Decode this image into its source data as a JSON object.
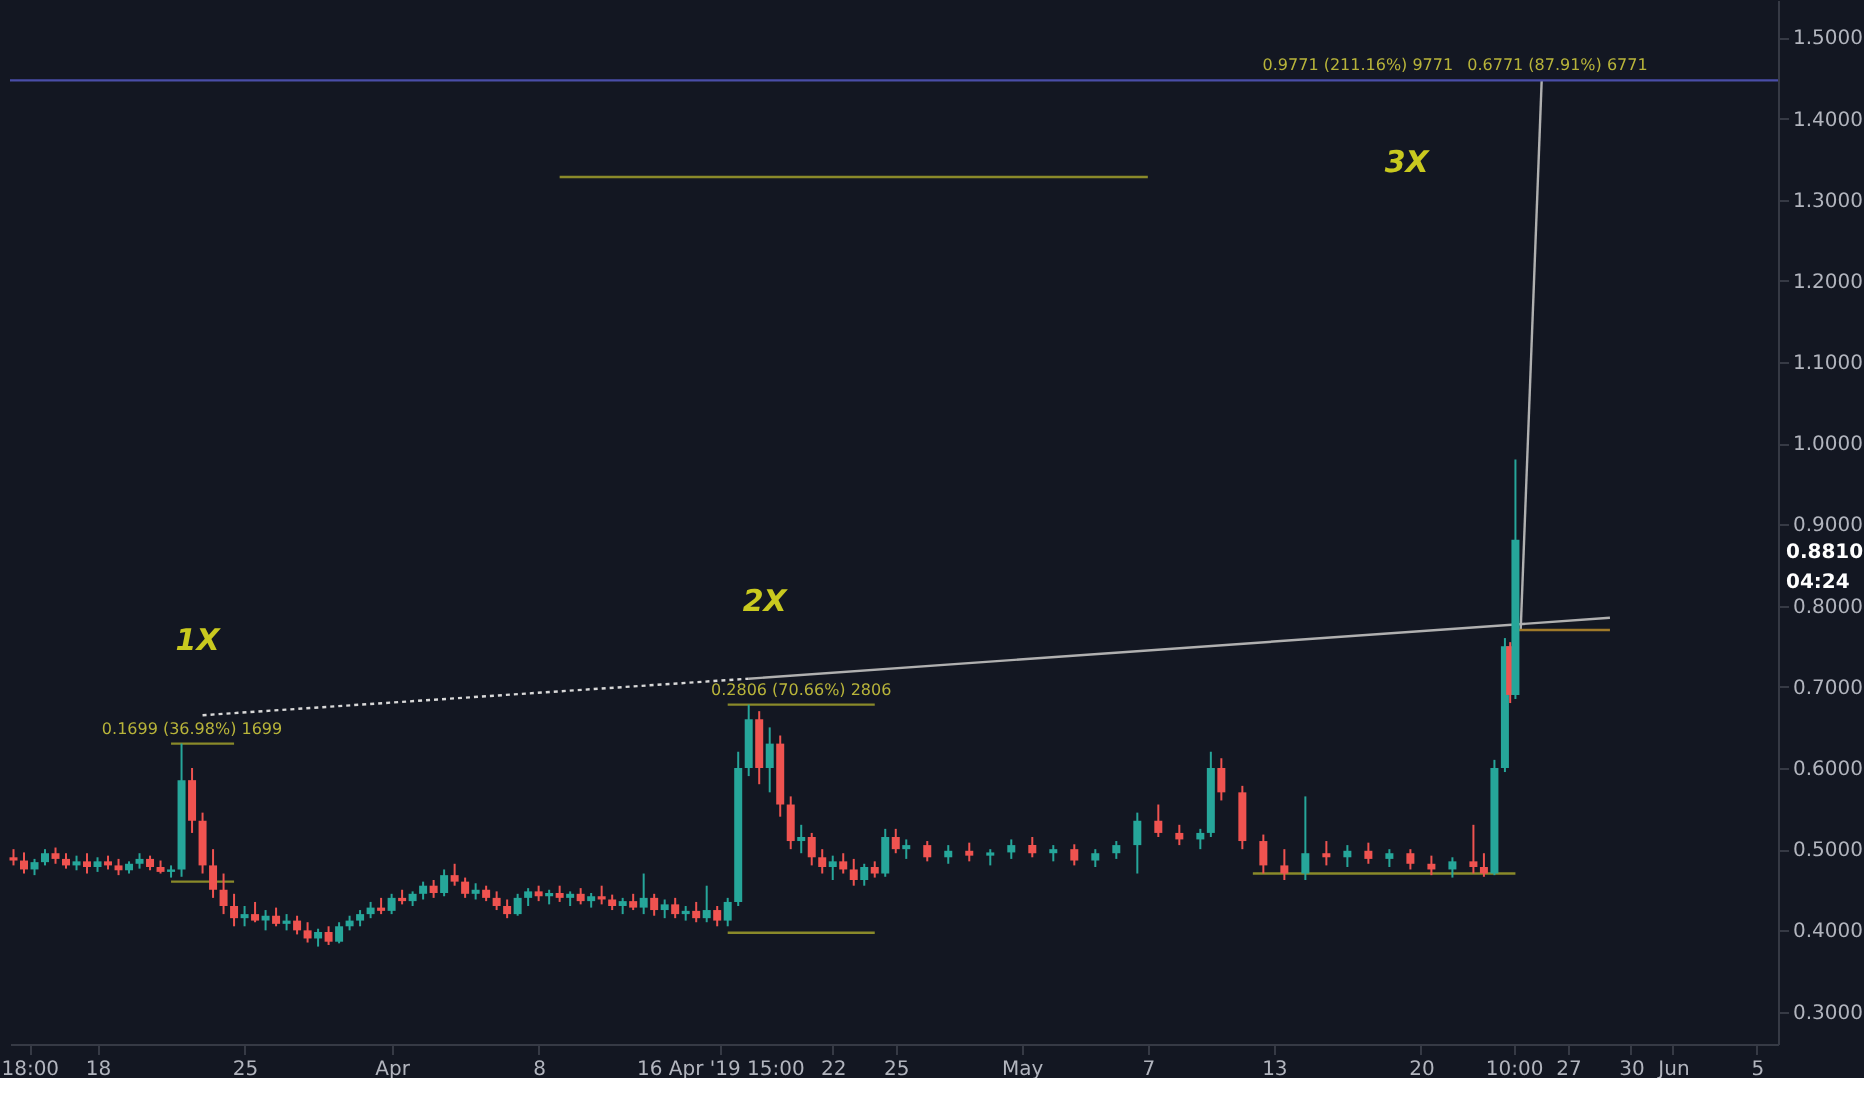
{
  "chart_data": {
    "type": "candlestick",
    "series": [
      {
        "type": "candlestick",
        "x": [
          "2019-03-14T00:00",
          "2019-03-14T12:00",
          "2019-03-15T00:00",
          "2019-03-15T12:00",
          "2019-03-16T00:00",
          "2019-03-16T12:00",
          "2019-03-17T00:00",
          "2019-03-17T12:00",
          "2019-03-18T00:00",
          "2019-03-18T12:00",
          "2019-03-19T00:00",
          "2019-03-19T12:00",
          "2019-03-20T00:00",
          "2019-03-20T12:00",
          "2019-03-21T00:00",
          "2019-03-21T12:00",
          "2019-03-22T00:00",
          "2019-03-22T12:00",
          "2019-03-23T00:00",
          "2019-03-23T12:00",
          "2019-03-24T00:00",
          "2019-03-24T12:00",
          "2019-03-25T00:00",
          "2019-03-25T12:00",
          "2019-03-26T00:00",
          "2019-03-26T12:00",
          "2019-03-27T00:00",
          "2019-03-27T12:00",
          "2019-03-28T00:00",
          "2019-03-28T12:00",
          "2019-03-29T00:00",
          "2019-03-29T12:00",
          "2019-03-30T00:00",
          "2019-03-30T12:00",
          "2019-03-31T00:00",
          "2019-03-31T12:00",
          "2019-04-01T00:00",
          "2019-04-01T12:00",
          "2019-04-02T00:00",
          "2019-04-02T12:00",
          "2019-04-03T00:00",
          "2019-04-03T12:00",
          "2019-04-04T00:00",
          "2019-04-04T12:00",
          "2019-04-05T00:00",
          "2019-04-05T12:00",
          "2019-04-06T00:00",
          "2019-04-06T12:00",
          "2019-04-07T00:00",
          "2019-04-07T12:00",
          "2019-04-08T00:00",
          "2019-04-08T12:00",
          "2019-04-09T00:00",
          "2019-04-09T12:00",
          "2019-04-10T00:00",
          "2019-04-10T12:00",
          "2019-04-11T00:00",
          "2019-04-11T12:00",
          "2019-04-12T00:00",
          "2019-04-12T12:00",
          "2019-04-13T00:00",
          "2019-04-13T12:00",
          "2019-04-14T00:00",
          "2019-04-14T12:00",
          "2019-04-15T00:00",
          "2019-04-15T12:00",
          "2019-04-16T00:00",
          "2019-04-16T12:00",
          "2019-04-17T00:00",
          "2019-04-17T12:00",
          "2019-04-18T00:00",
          "2019-04-18T12:00",
          "2019-04-19T00:00",
          "2019-04-19T12:00",
          "2019-04-20T00:00",
          "2019-04-20T12:00",
          "2019-04-21T00:00",
          "2019-04-21T12:00",
          "2019-04-22T00:00",
          "2019-04-22T12:00",
          "2019-04-23T00:00",
          "2019-04-23T12:00",
          "2019-04-24T00:00",
          "2019-04-24T12:00",
          "2019-04-25T00:00",
          "2019-04-25T12:00",
          "2019-04-26T12:00",
          "2019-04-27T12:00",
          "2019-04-28T12:00",
          "2019-04-29T12:00",
          "2019-04-30T12:00",
          "2019-05-01T12:00",
          "2019-05-02T12:00",
          "2019-05-03T12:00",
          "2019-05-04T12:00",
          "2019-05-05T12:00",
          "2019-05-06T12:00",
          "2019-05-07T12:00",
          "2019-05-08T12:00",
          "2019-05-09T12:00",
          "2019-05-10T00:00",
          "2019-05-10T12:00",
          "2019-05-11T12:00",
          "2019-05-12T12:00",
          "2019-05-13T12:00",
          "2019-05-14T12:00",
          "2019-05-15T12:00",
          "2019-05-16T12:00",
          "2019-05-17T12:00",
          "2019-05-18T12:00",
          "2019-05-19T12:00",
          "2019-05-20T12:00",
          "2019-05-21T12:00",
          "2019-05-22T12:00",
          "2019-05-23T00:00",
          "2019-05-23T12:00",
          "2019-05-24T00:00",
          "2019-05-24T06:00",
          "2019-05-24T12:00"
        ],
        "ohlc": [
          [
            0.49,
            0.5,
            0.48,
            0.486
          ],
          [
            0.486,
            0.496,
            0.47,
            0.475
          ],
          [
            0.475,
            0.488,
            0.468,
            0.484
          ],
          [
            0.484,
            0.5,
            0.48,
            0.495
          ],
          [
            0.495,
            0.502,
            0.482,
            0.488
          ],
          [
            0.488,
            0.495,
            0.476,
            0.48
          ],
          [
            0.48,
            0.492,
            0.474,
            0.485
          ],
          [
            0.485,
            0.495,
            0.47,
            0.478
          ],
          [
            0.478,
            0.49,
            0.472,
            0.485
          ],
          [
            0.485,
            0.492,
            0.475,
            0.48
          ],
          [
            0.48,
            0.488,
            0.468,
            0.474
          ],
          [
            0.474,
            0.485,
            0.47,
            0.482
          ],
          [
            0.482,
            0.495,
            0.476,
            0.488
          ],
          [
            0.488,
            0.492,
            0.474,
            0.478
          ],
          [
            0.478,
            0.486,
            0.47,
            0.472
          ],
          [
            0.472,
            0.48,
            0.465,
            0.475
          ],
          [
            0.475,
            0.63,
            0.466,
            0.585
          ],
          [
            0.585,
            0.6,
            0.52,
            0.535
          ],
          [
            0.535,
            0.545,
            0.47,
            0.48
          ],
          [
            0.48,
            0.5,
            0.44,
            0.45
          ],
          [
            0.45,
            0.47,
            0.42,
            0.43
          ],
          [
            0.43,
            0.445,
            0.405,
            0.415
          ],
          [
            0.415,
            0.43,
            0.405,
            0.42
          ],
          [
            0.42,
            0.435,
            0.41,
            0.412
          ],
          [
            0.412,
            0.425,
            0.4,
            0.418
          ],
          [
            0.418,
            0.428,
            0.405,
            0.408
          ],
          [
            0.408,
            0.42,
            0.4,
            0.412
          ],
          [
            0.412,
            0.418,
            0.395,
            0.4
          ],
          [
            0.4,
            0.41,
            0.385,
            0.39
          ],
          [
            0.39,
            0.402,
            0.38,
            0.398
          ],
          [
            0.398,
            0.405,
            0.382,
            0.386
          ],
          [
            0.386,
            0.41,
            0.384,
            0.405
          ],
          [
            0.405,
            0.418,
            0.4,
            0.412
          ],
          [
            0.412,
            0.425,
            0.405,
            0.42
          ],
          [
            0.42,
            0.435,
            0.415,
            0.428
          ],
          [
            0.428,
            0.44,
            0.42,
            0.424
          ],
          [
            0.424,
            0.445,
            0.42,
            0.44
          ],
          [
            0.44,
            0.45,
            0.432,
            0.436
          ],
          [
            0.436,
            0.448,
            0.43,
            0.445
          ],
          [
            0.445,
            0.46,
            0.438,
            0.455
          ],
          [
            0.455,
            0.462,
            0.44,
            0.446
          ],
          [
            0.446,
            0.475,
            0.442,
            0.468
          ],
          [
            0.468,
            0.482,
            0.455,
            0.46
          ],
          [
            0.46,
            0.465,
            0.44,
            0.445
          ],
          [
            0.445,
            0.458,
            0.438,
            0.45
          ],
          [
            0.45,
            0.455,
            0.436,
            0.44
          ],
          [
            0.44,
            0.448,
            0.425,
            0.43
          ],
          [
            0.43,
            0.438,
            0.415,
            0.42
          ],
          [
            0.42,
            0.445,
            0.418,
            0.44
          ],
          [
            0.44,
            0.452,
            0.43,
            0.448
          ],
          [
            0.448,
            0.455,
            0.436,
            0.442
          ],
          [
            0.442,
            0.45,
            0.432,
            0.446
          ],
          [
            0.446,
            0.455,
            0.435,
            0.44
          ],
          [
            0.44,
            0.448,
            0.43,
            0.445
          ],
          [
            0.445,
            0.452,
            0.432,
            0.436
          ],
          [
            0.436,
            0.446,
            0.428,
            0.442
          ],
          [
            0.442,
            0.455,
            0.432,
            0.438
          ],
          [
            0.438,
            0.444,
            0.425,
            0.43
          ],
          [
            0.43,
            0.44,
            0.42,
            0.436
          ],
          [
            0.436,
            0.445,
            0.425,
            0.428
          ],
          [
            0.428,
            0.47,
            0.42,
            0.44
          ],
          [
            0.44,
            0.445,
            0.418,
            0.425
          ],
          [
            0.425,
            0.438,
            0.415,
            0.432
          ],
          [
            0.432,
            0.44,
            0.415,
            0.42
          ],
          [
            0.42,
            0.43,
            0.412,
            0.424
          ],
          [
            0.424,
            0.435,
            0.41,
            0.415
          ],
          [
            0.415,
            0.455,
            0.41,
            0.425
          ],
          [
            0.425,
            0.43,
            0.405,
            0.412
          ],
          [
            0.412,
            0.44,
            0.405,
            0.435
          ],
          [
            0.435,
            0.62,
            0.43,
            0.6
          ],
          [
            0.6,
            0.678,
            0.59,
            0.66
          ],
          [
            0.66,
            0.67,
            0.58,
            0.6
          ],
          [
            0.6,
            0.65,
            0.57,
            0.63
          ],
          [
            0.63,
            0.64,
            0.54,
            0.555
          ],
          [
            0.555,
            0.565,
            0.5,
            0.51
          ],
          [
            0.51,
            0.53,
            0.495,
            0.515
          ],
          [
            0.515,
            0.52,
            0.48,
            0.49
          ],
          [
            0.49,
            0.5,
            0.47,
            0.478
          ],
          [
            0.478,
            0.492,
            0.462,
            0.485
          ],
          [
            0.485,
            0.495,
            0.47,
            0.475
          ],
          [
            0.475,
            0.488,
            0.455,
            0.462
          ],
          [
            0.462,
            0.482,
            0.455,
            0.478
          ],
          [
            0.478,
            0.485,
            0.465,
            0.47
          ],
          [
            0.47,
            0.525,
            0.466,
            0.515
          ],
          [
            0.515,
            0.525,
            0.495,
            0.5
          ],
          [
            0.5,
            0.512,
            0.488,
            0.505
          ],
          [
            0.505,
            0.51,
            0.485,
            0.49
          ],
          [
            0.49,
            0.505,
            0.482,
            0.498
          ],
          [
            0.498,
            0.508,
            0.485,
            0.492
          ],
          [
            0.492,
            0.5,
            0.48,
            0.496
          ],
          [
            0.496,
            0.512,
            0.488,
            0.505
          ],
          [
            0.505,
            0.515,
            0.49,
            0.495
          ],
          [
            0.495,
            0.505,
            0.485,
            0.5
          ],
          [
            0.5,
            0.506,
            0.48,
            0.486
          ],
          [
            0.486,
            0.5,
            0.478,
            0.495
          ],
          [
            0.495,
            0.51,
            0.488,
            0.505
          ],
          [
            0.505,
            0.545,
            0.47,
            0.535
          ],
          [
            0.535,
            0.555,
            0.515,
            0.52
          ],
          [
            0.52,
            0.53,
            0.505,
            0.512
          ],
          [
            0.512,
            0.525,
            0.5,
            0.52
          ],
          [
            0.52,
            0.62,
            0.515,
            0.6
          ],
          [
            0.6,
            0.612,
            0.56,
            0.57
          ],
          [
            0.57,
            0.578,
            0.5,
            0.51
          ],
          [
            0.51,
            0.518,
            0.47,
            0.48
          ],
          [
            0.48,
            0.5,
            0.462,
            0.47
          ],
          [
            0.47,
            0.565,
            0.462,
            0.495
          ],
          [
            0.495,
            0.51,
            0.48,
            0.49
          ],
          [
            0.49,
            0.505,
            0.478,
            0.498
          ],
          [
            0.498,
            0.508,
            0.482,
            0.488
          ],
          [
            0.488,
            0.5,
            0.478,
            0.495
          ],
          [
            0.495,
            0.5,
            0.475,
            0.482
          ],
          [
            0.482,
            0.492,
            0.468,
            0.475
          ],
          [
            0.475,
            0.49,
            0.465,
            0.485
          ],
          [
            0.485,
            0.53,
            0.47,
            0.478
          ],
          [
            0.478,
            0.495,
            0.466,
            0.47
          ],
          [
            0.47,
            0.61,
            0.468,
            0.6
          ],
          [
            0.6,
            0.76,
            0.595,
            0.75
          ],
          [
            0.75,
            0.755,
            0.68,
            0.69
          ],
          [
            0.69,
            0.98,
            0.685,
            0.881
          ]
        ],
        "colors": [
          "#ef5350",
          "#ef5350",
          "#26a69a",
          "#26a69a",
          "#ef5350",
          "#ef5350",
          "#26a69a",
          "#ef5350",
          "#26a69a",
          "#ef5350",
          "#ef5350",
          "#26a69a",
          "#26a69a",
          "#ef5350",
          "#ef5350",
          "#26a69a",
          "#26a69a",
          "#ef5350",
          "#ef5350",
          "#ef5350",
          "#ef5350",
          "#ef5350",
          "#26a69a",
          "#ef5350",
          "#26a69a",
          "#ef5350",
          "#26a69a",
          "#ef5350",
          "#ef5350",
          "#26a69a",
          "#ef5350",
          "#26a69a",
          "#26a69a",
          "#26a69a",
          "#26a69a",
          "#ef5350",
          "#26a69a",
          "#ef5350",
          "#26a69a",
          "#26a69a",
          "#ef5350",
          "#26a69a",
          "#ef5350",
          "#ef5350",
          "#26a69a",
          "#ef5350",
          "#ef5350",
          "#ef5350",
          "#26a69a",
          "#26a69a",
          "#ef5350",
          "#26a69a",
          "#ef5350",
          "#26a69a",
          "#ef5350",
          "#26a69a",
          "#ef5350",
          "#ef5350",
          "#26a69a",
          "#ef5350",
          "#26a69a",
          "#ef5350",
          "#26a69a",
          "#ef5350",
          "#26a69a",
          "#ef5350",
          "#26a69a",
          "#ef5350",
          "#26a69a",
          "#26a69a",
          "#26a69a",
          "#ef5350",
          "#26a69a",
          "#ef5350",
          "#ef5350",
          "#26a69a",
          "#ef5350",
          "#ef5350",
          "#26a69a",
          "#ef5350",
          "#ef5350",
          "#26a69a",
          "#ef5350",
          "#26a69a",
          "#ef5350",
          "#26a69a",
          "#ef5350",
          "#26a69a",
          "#ef5350",
          "#26a69a",
          "#26a69a",
          "#ef5350",
          "#26a69a",
          "#ef5350",
          "#26a69a",
          "#26a69a",
          "#26a69a",
          "#ef5350",
          "#ef5350",
          "#26a69a",
          "#26a69a",
          "#ef5350",
          "#ef5350",
          "#ef5350",
          "#ef5350",
          "#26a69a",
          "#ef5350",
          "#26a69a",
          "#ef5350",
          "#26a69a",
          "#ef5350",
          "#ef5350",
          "#26a69a",
          "#ef5350",
          "#ef5350",
          "#26a69a",
          "#26a69a",
          "#ef5350",
          "#26a69a"
        ]
      },
      {
        "type": "line",
        "x": [
          "2019-03-23T00:00",
          "2019-04-18T00:00"
        ],
        "values": [
          0.665,
          0.71
        ],
        "color": "#d8d8d8",
        "line_style": "dotted"
      },
      {
        "type": "line",
        "x": [
          "2019-04-18T00:00",
          "2019-05-29T00:00"
        ],
        "values": [
          0.71,
          0.785
        ],
        "color": "#b0b0b0",
        "line_style": "solid"
      },
      {
        "type": "line",
        "x": [
          "2019-05-24T18:00",
          "2019-05-25T18:00"
        ],
        "values": [
          0.77,
          1.447
        ],
        "color": "#b0b0b0",
        "line_style": "solid"
      },
      {
        "type": "line",
        "x": [
          "2019-03-21T12:00",
          "2019-03-24T12:00"
        ],
        "values": [
          0.63,
          0.63
        ],
        "color": "#8a8a2a",
        "line_style": "solid"
      },
      {
        "type": "line",
        "x": [
          "2019-03-21T12:00",
          "2019-03-24T12:00"
        ],
        "values": [
          0.46,
          0.46
        ],
        "color": "#8a8a2a",
        "line_style": "solid"
      },
      {
        "type": "line",
        "x": [
          "2019-04-17T00:00",
          "2019-04-24T00:00"
        ],
        "values": [
          0.678,
          0.678
        ],
        "color": "#8a8a2a",
        "line_style": "solid"
      },
      {
        "type": "line",
        "x": [
          "2019-04-17T00:00",
          "2019-04-24T00:00"
        ],
        "values": [
          0.397,
          0.397
        ],
        "color": "#8a8a2a",
        "line_style": "solid"
      },
      {
        "type": "line",
        "x": [
          "2019-04-09T00:00",
          "2019-05-07T00:00"
        ],
        "values": [
          1.328,
          1.328
        ],
        "color": "#8a8a2a",
        "line_style": "solid"
      },
      {
        "type": "line",
        "x": [
          "2019-05-12T00:00",
          "2019-05-24T12:00"
        ],
        "values": [
          0.47,
          0.47
        ],
        "color": "#8a8a2a",
        "line_style": "solid"
      },
      {
        "type": "line",
        "x": [
          "2019-05-24T12:00",
          "2019-05-29T00:00"
        ],
        "values": [
          0.77,
          0.77
        ],
        "color": "#a07a2a",
        "line_style": "solid"
      }
    ],
    "ref_lines": [
      {
        "axis": "y",
        "value": 1.447,
        "color": "#4a4ea8"
      }
    ],
    "annotations": [
      {
        "text": "1X",
        "x": "2019-03-22T00:00",
        "y": 0.63
      },
      {
        "text": "2X",
        "x": "2019-04-18T00:00",
        "y": 0.678
      },
      "3X",
      {
        "text": "0.1699 (36.98%) 1699",
        "x": "2019-03-22T12:00",
        "y": 0.63
      },
      {
        "text": "0.2806 (70.66%) 2806",
        "x": "2019-04-20T12:00",
        "y": 0.678
      },
      {
        "text": "0.9771 (211.16%) 9771",
        "x": "2019-05-17T00:00",
        "y": 1.447
      },
      {
        "text": "0.6771 (87.91%) 6771",
        "x": "2019-05-26T12:00",
        "y": 1.447
      },
      "0.8810",
      "04:24"
    ],
    "xlim": [
      "2019-03-13T20:00",
      "2019-06-06T00:00"
    ],
    "xticks": [
      {
        "value": "2019-03-14T18:00",
        "label": "18:00"
      },
      {
        "value": "2019-03-18T00:00",
        "label": "18"
      },
      {
        "value": "2019-03-25T00:00",
        "label": "25"
      },
      {
        "value": "2019-04-01T00:00",
        "label": "Apr"
      },
      {
        "value": "2019-04-08T00:00",
        "label": "8"
      },
      {
        "value": "2019-04-16T15:00",
        "label": "16 Apr '19  15:00"
      },
      {
        "value": "2019-04-22T00:00",
        "label": "22"
      },
      {
        "value": "2019-04-25T00:00",
        "label": "25"
      },
      {
        "value": "2019-05-01T00:00",
        "label": "May"
      },
      {
        "value": "2019-05-07T00:00",
        "label": "7"
      },
      {
        "value": "2019-05-13T00:00",
        "label": "13"
      },
      {
        "value": "2019-05-20T00:00",
        "label": "20"
      },
      {
        "value": "2019-05-24T10:00",
        "label": "10:00"
      },
      {
        "value": "2019-05-27T00:00",
        "label": "27"
      },
      {
        "value": "2019-05-30T00:00",
        "label": "30"
      },
      {
        "value": "2019-06-01T00:00",
        "label": "Jun"
      },
      {
        "value": "2019-06-05T00:00",
        "label": "5"
      }
    ],
    "ylim": [
      0.26,
      1.546
    ],
    "yticks": [
      {
        "value": 0.3,
        "label": "0.3000"
      },
      {
        "value": 0.4,
        "label": "0.4000"
      },
      {
        "value": 0.5,
        "label": "0.5000"
      },
      {
        "value": 0.6,
        "label": "0.6000"
      },
      {
        "value": 0.7,
        "label": "0.7000"
      },
      {
        "value": 0.8,
        "label": "0.8000"
      },
      {
        "value": 0.9,
        "label": "0.9000"
      },
      {
        "value": 1.0,
        "label": "1.0000"
      },
      {
        "value": 1.1,
        "label": "1.1000"
      },
      {
        "value": 1.2,
        "label": "1.2000"
      },
      {
        "value": 1.3,
        "label": "1.3000"
      },
      {
        "value": 1.4,
        "label": "1.4000"
      },
      {
        "value": 1.5,
        "label": "1.5000"
      }
    ],
    "grid": false
  }
}
